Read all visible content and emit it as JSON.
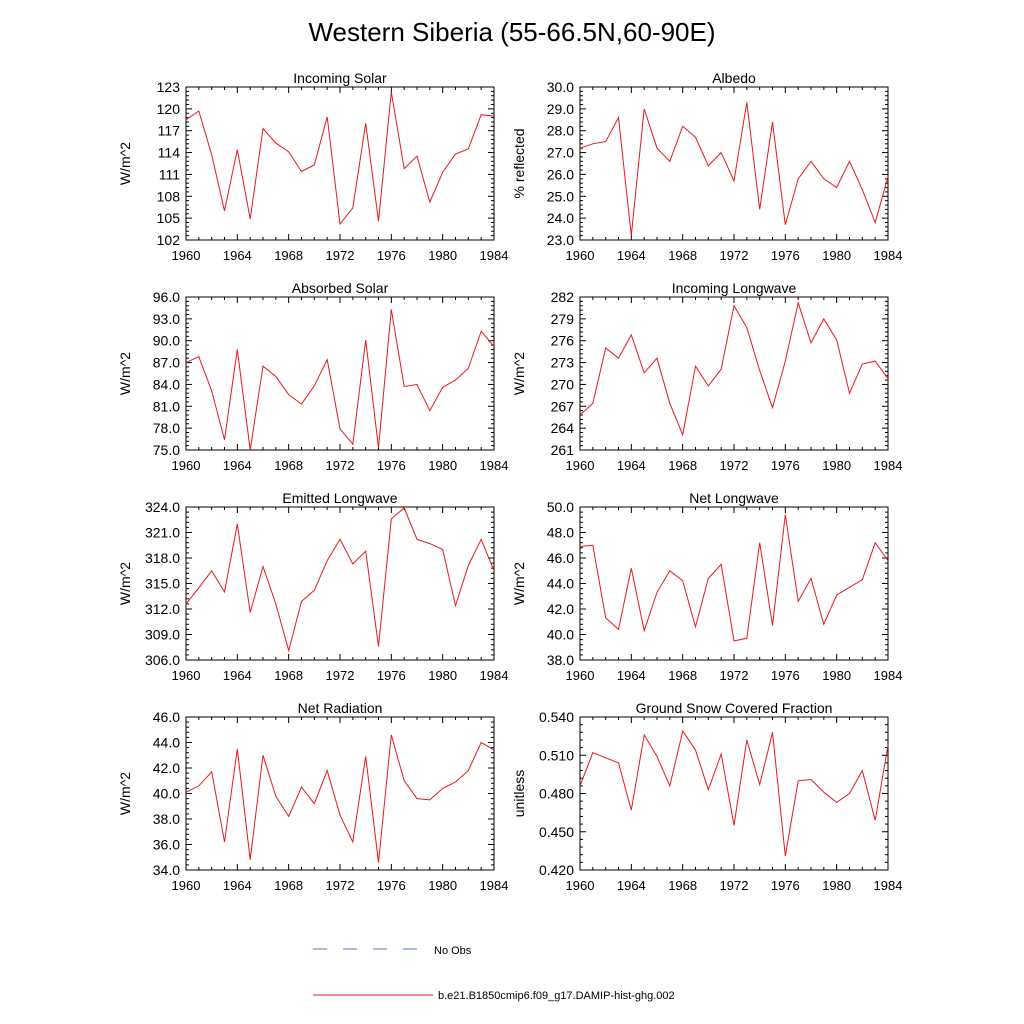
{
  "title": "Western Siberia (55-66.5N,60-90E)",
  "colors": {
    "model_line": "#e8191c",
    "obs_line": "#5a78c8",
    "axis": "#000000"
  },
  "legend": {
    "obs_label": "No Obs",
    "model_label": "b.e21.B1850cmip6.f09_g17.DAMIP-hist-ghg.002"
  },
  "chart_data": [
    {
      "type": "line",
      "title": "Incoming Solar",
      "xlabel": "",
      "ylabel": "W/m^2",
      "xlim": [
        1960,
        1984
      ],
      "ylim": [
        102,
        123
      ],
      "yticks": [
        102,
        105,
        108,
        111,
        114,
        117,
        120,
        123
      ],
      "ydecimals": 0,
      "xticks": [
        1960,
        1964,
        1968,
        1972,
        1976,
        1980,
        1984
      ],
      "x": [
        1960,
        1961,
        1962,
        1963,
        1964,
        1965,
        1966,
        1967,
        1968,
        1969,
        1970,
        1971,
        1972,
        1973,
        1974,
        1975,
        1976,
        1977,
        1978,
        1979,
        1980,
        1981,
        1982,
        1983,
        1984
      ],
      "series": [
        {
          "values": [
            118.5,
            119.7,
            113.7,
            106.0,
            114.4,
            104.9,
            117.3,
            115.3,
            114.1,
            111.4,
            112.3,
            118.9,
            104.2,
            106.4,
            118.0,
            104.6,
            122.3,
            111.8,
            113.5,
            107.2,
            111.3,
            113.8,
            114.5,
            119.2,
            119.0
          ]
        }
      ]
    },
    {
      "type": "line",
      "title": "Albedo",
      "xlabel": "",
      "ylabel": "% reflected",
      "xlim": [
        1960,
        1984
      ],
      "ylim": [
        23.0,
        30.0
      ],
      "yticks": [
        23.0,
        24.0,
        25.0,
        26.0,
        27.0,
        28.0,
        29.0,
        30.0
      ],
      "ydecimals": 1,
      "xticks": [
        1960,
        1964,
        1968,
        1972,
        1976,
        1980,
        1984
      ],
      "x": [
        1960,
        1961,
        1962,
        1963,
        1964,
        1965,
        1966,
        1967,
        1968,
        1969,
        1970,
        1971,
        1972,
        1973,
        1974,
        1975,
        1976,
        1977,
        1978,
        1979,
        1980,
        1981,
        1982,
        1983,
        1984
      ],
      "series": [
        {
          "values": [
            27.2,
            27.4,
            27.5,
            28.6,
            23.2,
            29.0,
            27.2,
            26.6,
            28.2,
            27.7,
            26.4,
            27.0,
            25.7,
            29.3,
            24.4,
            28.4,
            23.7,
            25.8,
            26.6,
            25.8,
            25.4,
            26.6,
            25.3,
            23.8,
            25.9
          ]
        }
      ]
    },
    {
      "type": "line",
      "title": "Absorbed Solar",
      "xlabel": "",
      "ylabel": "W/m^2",
      "xlim": [
        1960,
        1984
      ],
      "ylim": [
        75.0,
        96.0
      ],
      "yticks": [
        75.0,
        78.0,
        81.0,
        84.0,
        87.0,
        90.0,
        93.0,
        96.0
      ],
      "ydecimals": 1,
      "xticks": [
        1960,
        1964,
        1968,
        1972,
        1976,
        1980,
        1984
      ],
      "x": [
        1960,
        1961,
        1962,
        1963,
        1964,
        1965,
        1966,
        1967,
        1968,
        1969,
        1970,
        1971,
        1972,
        1973,
        1974,
        1975,
        1976,
        1977,
        1978,
        1979,
        1980,
        1981,
        1982,
        1983,
        1984
      ],
      "series": [
        {
          "values": [
            87.0,
            87.8,
            83.1,
            76.4,
            88.8,
            75.0,
            86.5,
            85.1,
            82.6,
            81.3,
            83.8,
            87.4,
            77.9,
            75.8,
            90.1,
            75.3,
            94.3,
            83.7,
            84.0,
            80.4,
            83.6,
            84.6,
            86.2,
            91.3,
            89.2
          ]
        }
      ]
    },
    {
      "type": "line",
      "title": "Incoming Longwave",
      "xlabel": "",
      "ylabel": "W/m^2",
      "xlim": [
        1960,
        1984
      ],
      "ylim": [
        261,
        282
      ],
      "yticks": [
        261,
        264,
        267,
        270,
        273,
        276,
        279,
        282
      ],
      "ydecimals": 0,
      "xticks": [
        1960,
        1964,
        1968,
        1972,
        1976,
        1980,
        1984
      ],
      "x": [
        1960,
        1961,
        1962,
        1963,
        1964,
        1965,
        1966,
        1967,
        1968,
        1969,
        1970,
        1971,
        1972,
        1973,
        1974,
        1975,
        1976,
        1977,
        1978,
        1979,
        1980,
        1981,
        1982,
        1983,
        1984
      ],
      "series": [
        {
          "values": [
            265.8,
            267.4,
            275.0,
            273.6,
            276.8,
            271.6,
            273.6,
            267.4,
            263.1,
            272.5,
            269.8,
            272.1,
            280.8,
            277.8,
            271.9,
            266.8,
            273.2,
            281.2,
            275.7,
            279.0,
            276.1,
            268.8,
            272.8,
            273.2,
            270.8
          ]
        }
      ]
    },
    {
      "type": "line",
      "title": "Emitted Longwave",
      "xlabel": "",
      "ylabel": "W/m^2",
      "xlim": [
        1960,
        1984
      ],
      "ylim": [
        306.0,
        324.0
      ],
      "yticks": [
        306.0,
        309.0,
        312.0,
        315.0,
        318.0,
        321.0,
        324.0
      ],
      "ydecimals": 1,
      "xticks": [
        1960,
        1964,
        1968,
        1972,
        1976,
        1980,
        1984
      ],
      "x": [
        1960,
        1961,
        1962,
        1963,
        1964,
        1965,
        1966,
        1967,
        1968,
        1969,
        1970,
        1971,
        1972,
        1973,
        1974,
        1975,
        1976,
        1977,
        1978,
        1979,
        1980,
        1981,
        1982,
        1983,
        1984
      ],
      "series": [
        {
          "values": [
            312.6,
            314.5,
            316.5,
            314.0,
            322.0,
            311.6,
            317.0,
            312.6,
            307.1,
            312.9,
            314.2,
            317.7,
            320.2,
            317.3,
            318.8,
            307.6,
            322.6,
            323.9,
            320.2,
            319.7,
            319.0,
            312.4,
            317.1,
            320.2,
            316.5
          ]
        }
      ]
    },
    {
      "type": "line",
      "title": "Net Longwave",
      "xlabel": "",
      "ylabel": "W/m^2",
      "xlim": [
        1960,
        1984
      ],
      "ylim": [
        38.0,
        50.0
      ],
      "yticks": [
        38.0,
        40.0,
        42.0,
        44.0,
        46.0,
        48.0,
        50.0
      ],
      "ydecimals": 1,
      "xticks": [
        1960,
        1964,
        1968,
        1972,
        1976,
        1980,
        1984
      ],
      "x": [
        1960,
        1961,
        1962,
        1963,
        1964,
        1965,
        1966,
        1967,
        1968,
        1969,
        1970,
        1971,
        1972,
        1973,
        1974,
        1975,
        1976,
        1977,
        1978,
        1979,
        1980,
        1981,
        1982,
        1983,
        1984
      ],
      "series": [
        {
          "values": [
            46.9,
            47.0,
            41.3,
            40.4,
            45.2,
            40.3,
            43.3,
            45.0,
            44.2,
            40.6,
            44.4,
            45.5,
            39.5,
            39.7,
            47.2,
            40.7,
            49.4,
            42.6,
            44.4,
            40.8,
            43.1,
            43.7,
            44.3,
            47.2,
            45.8
          ]
        }
      ]
    },
    {
      "type": "line",
      "title": "Net Radiation",
      "xlabel": "",
      "ylabel": "W/m^2",
      "xlim": [
        1960,
        1984
      ],
      "ylim": [
        34.0,
        46.0
      ],
      "yticks": [
        34.0,
        36.0,
        38.0,
        40.0,
        42.0,
        44.0,
        46.0
      ],
      "ydecimals": 1,
      "xticks": [
        1960,
        1964,
        1968,
        1972,
        1976,
        1980,
        1984
      ],
      "x": [
        1960,
        1961,
        1962,
        1963,
        1964,
        1965,
        1966,
        1967,
        1968,
        1969,
        1970,
        1971,
        1972,
        1973,
        1974,
        1975,
        1976,
        1977,
        1978,
        1979,
        1980,
        1981,
        1982,
        1983,
        1984
      ],
      "series": [
        {
          "values": [
            40.1,
            40.6,
            41.7,
            36.2,
            43.5,
            34.8,
            43.0,
            39.8,
            38.2,
            40.5,
            39.2,
            41.8,
            38.3,
            36.2,
            42.9,
            34.6,
            44.6,
            41.0,
            39.6,
            39.5,
            40.4,
            40.9,
            41.8,
            44.0,
            43.4
          ]
        }
      ]
    },
    {
      "type": "line",
      "title": "Ground Snow Covered Fraction",
      "xlabel": "",
      "ylabel": "unitless",
      "xlim": [
        1960,
        1984
      ],
      "ylim": [
        0.42,
        0.54
      ],
      "yticks": [
        0.42,
        0.45,
        0.48,
        0.51,
        0.54
      ],
      "ydecimals": 3,
      "xticks": [
        1960,
        1964,
        1968,
        1972,
        1976,
        1980,
        1984
      ],
      "x": [
        1960,
        1961,
        1962,
        1963,
        1964,
        1965,
        1966,
        1967,
        1968,
        1969,
        1970,
        1971,
        1972,
        1973,
        1974,
        1975,
        1976,
        1977,
        1978,
        1979,
        1980,
        1981,
        1982,
        1983,
        1984
      ],
      "series": [
        {
          "values": [
            0.486,
            0.512,
            0.508,
            0.504,
            0.467,
            0.526,
            0.509,
            0.486,
            0.529,
            0.514,
            0.483,
            0.511,
            0.455,
            0.522,
            0.487,
            0.528,
            0.431,
            0.49,
            0.491,
            0.481,
            0.473,
            0.48,
            0.498,
            0.459,
            0.518
          ]
        }
      ]
    }
  ]
}
